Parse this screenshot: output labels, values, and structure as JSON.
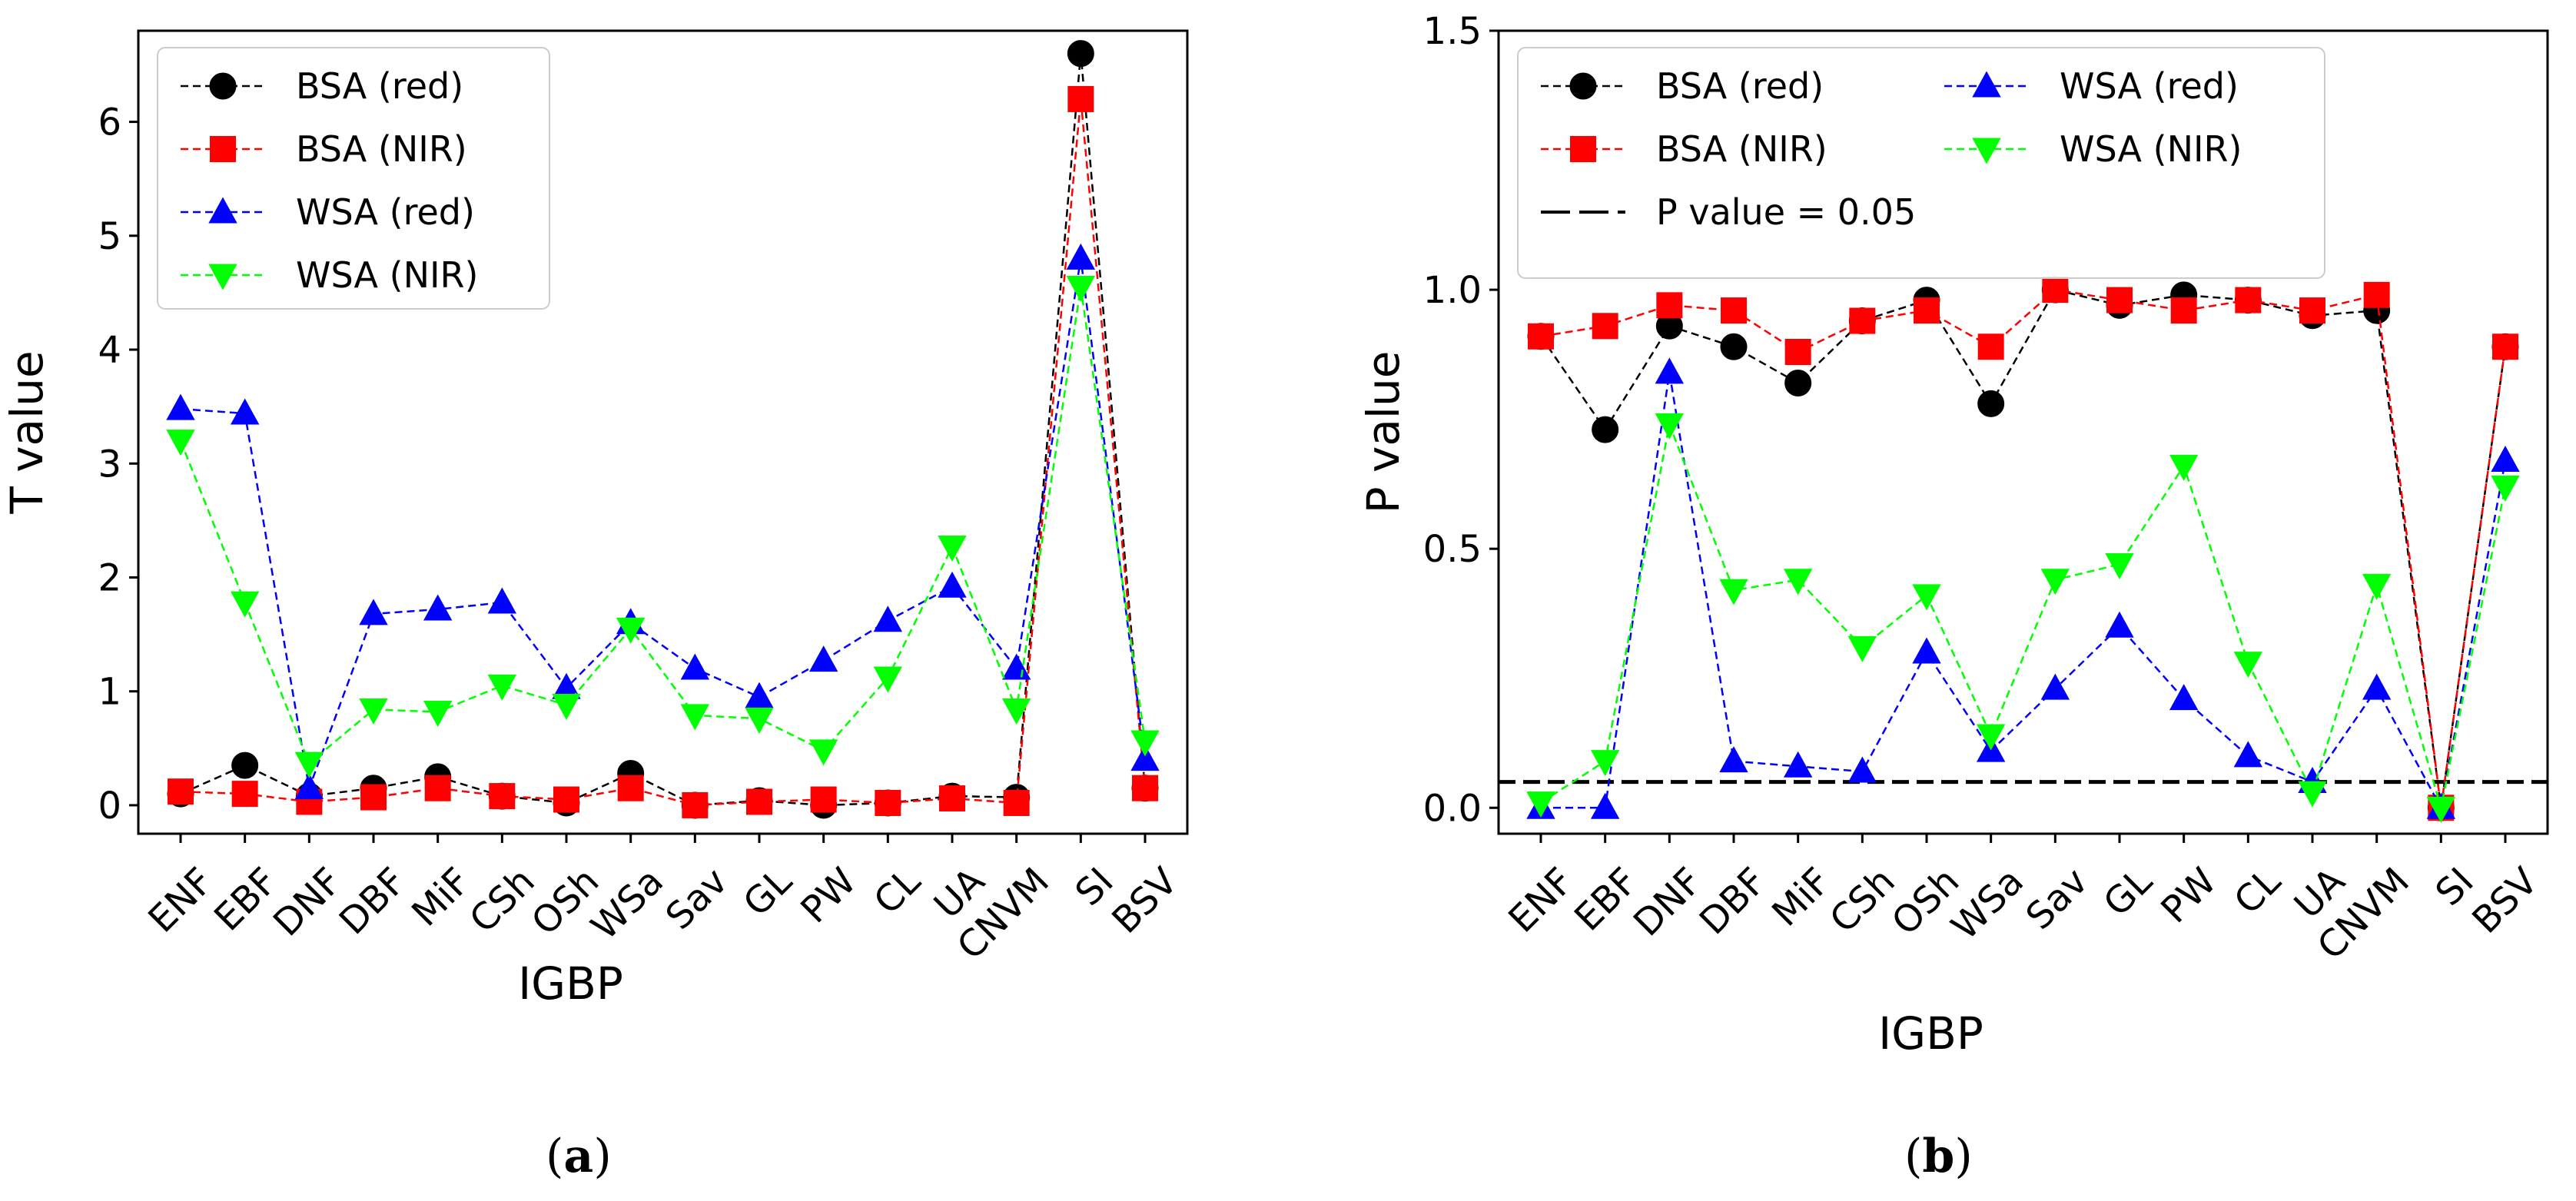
{
  "chart_data": [
    {
      "type": "line",
      "panel_label": "a",
      "title": "",
      "xlabel": "IGBP",
      "ylabel": "T value",
      "categories": [
        "ENF",
        "EBF",
        "DNF",
        "DBF",
        "MiF",
        "CSh",
        "OSh",
        "WSa",
        "Sav",
        "GL",
        "PW",
        "CL",
        "UA",
        "CNVM",
        "SI",
        "BSV"
      ],
      "ylim": [
        -0.25,
        6.8
      ],
      "yticks": [
        0,
        1,
        2,
        3,
        4,
        5,
        6
      ],
      "legend": {
        "placement": "top-left",
        "columns": 1
      },
      "series": [
        {
          "name": "BSA (red)",
          "color": "#000000",
          "marker": "circle",
          "values": [
            0.1,
            0.35,
            0.08,
            0.15,
            0.25,
            0.08,
            0.02,
            0.28,
            0.0,
            0.04,
            0.0,
            0.02,
            0.08,
            0.07,
            6.6,
            0.15
          ]
        },
        {
          "name": "BSA (NIR)",
          "color": "#ff0000",
          "marker": "square",
          "values": [
            0.12,
            0.1,
            0.03,
            0.07,
            0.15,
            0.08,
            0.05,
            0.15,
            0.0,
            0.03,
            0.05,
            0.02,
            0.06,
            0.02,
            6.2,
            0.15
          ]
        },
        {
          "name": "WSA (red)",
          "color": "#0000ff",
          "marker": "triangle-up",
          "values": [
            3.48,
            3.44,
            0.15,
            1.68,
            1.72,
            1.78,
            1.03,
            1.6,
            1.2,
            0.95,
            1.27,
            1.62,
            1.92,
            1.2,
            4.8,
            0.4
          ]
        },
        {
          "name": "WSA (NIR)",
          "color": "#00ff00",
          "marker": "triangle-down",
          "values": [
            3.2,
            1.78,
            0.37,
            0.84,
            0.82,
            1.05,
            0.88,
            1.55,
            0.79,
            0.76,
            0.48,
            1.12,
            2.27,
            0.84,
            4.55,
            0.56
          ]
        }
      ]
    },
    {
      "type": "line",
      "panel_label": "b",
      "title": "",
      "xlabel": "IGBP",
      "ylabel": "P value",
      "categories": [
        "ENF",
        "EBF",
        "DNF",
        "DBF",
        "MiF",
        "CSh",
        "OSh",
        "WSa",
        "Sav",
        "GL",
        "PW",
        "CL",
        "UA",
        "CNVM",
        "SI",
        "BSV"
      ],
      "ylim": [
        -0.05,
        1.5
      ],
      "yticks": [
        0.0,
        0.5,
        1.0,
        1.5
      ],
      "ytick_labels": [
        "0.0",
        "0.5",
        "1.0",
        "1.5"
      ],
      "legend": {
        "placement": "top-left",
        "columns": 2
      },
      "reference_line": {
        "label": "P value = 0.05",
        "y": 0.05,
        "style": "dashed",
        "color": "#000000"
      },
      "series": [
        {
          "name": "BSA (red)",
          "color": "#000000",
          "marker": "circle",
          "values": [
            0.91,
            0.73,
            0.93,
            0.89,
            0.82,
            0.94,
            0.98,
            0.78,
            1.0,
            0.97,
            0.99,
            0.98,
            0.95,
            0.96,
            0.0,
            0.89
          ]
        },
        {
          "name": "BSA (NIR)",
          "color": "#ff0000",
          "marker": "square",
          "values": [
            0.91,
            0.93,
            0.97,
            0.96,
            0.88,
            0.94,
            0.96,
            0.89,
            1.0,
            0.98,
            0.96,
            0.98,
            0.96,
            0.99,
            0.0,
            0.89
          ]
        },
        {
          "name": "WSA (red)",
          "color": "#0000ff",
          "marker": "triangle-up",
          "values": [
            0.0,
            0.0,
            0.84,
            0.09,
            0.08,
            0.07,
            0.3,
            0.11,
            0.23,
            0.35,
            0.21,
            0.1,
            0.05,
            0.23,
            0.0,
            0.67
          ]
        },
        {
          "name": "WSA (NIR)",
          "color": "#00ff00",
          "marker": "triangle-down",
          "values": [
            0.01,
            0.09,
            0.74,
            0.42,
            0.44,
            0.31,
            0.41,
            0.14,
            0.44,
            0.47,
            0.66,
            0.28,
            0.03,
            0.43,
            0.0,
            0.62
          ]
        }
      ]
    }
  ]
}
